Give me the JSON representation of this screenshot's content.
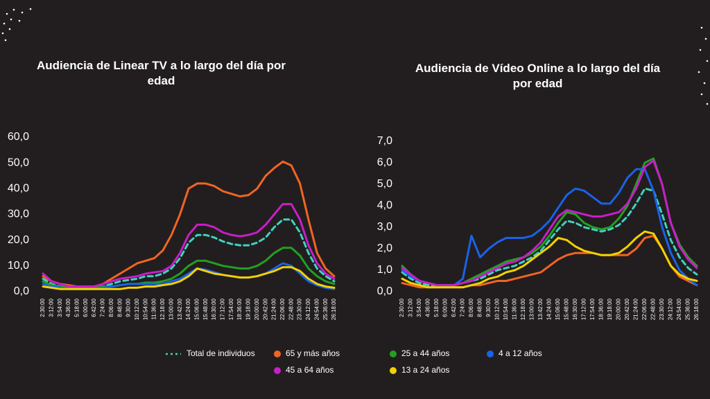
{
  "chart_data": [
    {
      "type": "line",
      "title": "Audiencia de Linear TV a lo largo del día por edad",
      "categories": [
        "2:30:00",
        "3:12:00",
        "3:54:00",
        "4:36:00",
        "5:18:00",
        "6:00:00",
        "6:42:00",
        "7:24:00",
        "8:06:00",
        "8:48:00",
        "9:30:00",
        "10:12:00",
        "10:54:00",
        "11:36:00",
        "12:18:00",
        "13:00:00",
        "13:42:00",
        "14:24:00",
        "15:06:00",
        "15:48:00",
        "16:30:00",
        "17:12:00",
        "17:54:00",
        "18:36:00",
        "19:18:00",
        "20:00:00",
        "20:42:00",
        "21:24:00",
        "22:06:00",
        "22:48:00",
        "23:30:00",
        "24:12:00",
        "24:54:00",
        "25:36:00",
        "26:18:00"
      ],
      "ylim": [
        0,
        60
      ],
      "yticks": [
        {
          "value": 0,
          "label": "0,0"
        },
        {
          "value": 10,
          "label": "10,0"
        },
        {
          "value": 20,
          "label": "20,0"
        },
        {
          "value": 30,
          "label": "30,0"
        },
        {
          "value": 40,
          "label": "40,0"
        },
        {
          "value": 50,
          "label": "50,0"
        },
        {
          "value": 60,
          "label": "60,0"
        }
      ],
      "series": [
        {
          "name": "Total de individuos",
          "color": "#3fd3bf",
          "dashed": true,
          "values": [
            5,
            3,
            2,
            2,
            1.5,
            1.5,
            1.5,
            2,
            3,
            4,
            4.5,
            5,
            6,
            6,
            7,
            9,
            13,
            19,
            22,
            22,
            21,
            19.5,
            18.5,
            18,
            18,
            19,
            21,
            25,
            28,
            28,
            23,
            15,
            9,
            6,
            4
          ]
        },
        {
          "name": "65 y más años",
          "color": "#f26522",
          "values": [
            6,
            4,
            3,
            2.5,
            2,
            2,
            2,
            3,
            5,
            7,
            9,
            11,
            12,
            13,
            16,
            22,
            30,
            40,
            42,
            42,
            41,
            39,
            38,
            37,
            37.5,
            40,
            45,
            48,
            50.5,
            49,
            42,
            28,
            15,
            9,
            6
          ]
        },
        {
          "name": "25 a 44 años",
          "color": "#22a022",
          "values": [
            4,
            2.5,
            2,
            1.5,
            1.5,
            1.5,
            1.5,
            2,
            2,
            2.5,
            3,
            3,
            3.5,
            3.5,
            4,
            5,
            7,
            10,
            12,
            12,
            11,
            10,
            9.5,
            9,
            9,
            10,
            12,
            15,
            17,
            17,
            14,
            9,
            6,
            4,
            3
          ]
        },
        {
          "name": "4 a 12 años",
          "color": "#1a62e8",
          "values": [
            3,
            2,
            1.5,
            1,
            1,
            1,
            1,
            1.5,
            2,
            2.5,
            3,
            3,
            3,
            3,
            3,
            4,
            5,
            7,
            9,
            8.5,
            7.5,
            6.5,
            6,
            5.5,
            5.5,
            6,
            7,
            9,
            11,
            10,
            7,
            4,
            2.5,
            1.5,
            1
          ]
        },
        {
          "name": "45 a 64 años",
          "color": "#c81ec8",
          "values": [
            7,
            4,
            3,
            2,
            2,
            2,
            2,
            3,
            4,
            5,
            5.5,
            6,
            7,
            7.5,
            8,
            10,
            15,
            22,
            26,
            26,
            25,
            23,
            22,
            21.5,
            22,
            23,
            26,
            30,
            34,
            34,
            28,
            18,
            11,
            7,
            5
          ]
        },
        {
          "name": "13 a 24 años",
          "color": "#f2d200",
          "values": [
            2,
            1.5,
            1,
            1,
            1,
            1,
            1,
            1,
            1,
            1,
            1.5,
            1.5,
            2,
            2,
            2.5,
            3,
            4,
            6,
            9,
            8,
            7,
            6.5,
            6,
            5.5,
            5.5,
            6,
            7,
            8,
            9.5,
            9.5,
            8,
            5,
            3,
            2,
            1.5
          ]
        }
      ]
    },
    {
      "type": "line",
      "title": "Audiencia de Vídeo Online a lo largo del día por edad",
      "categories": [
        "2:30:00",
        "3:12:00",
        "3:54:00",
        "4:36:00",
        "5:18:00",
        "6:00:00",
        "6:42:00",
        "7:24:00",
        "8:06:00",
        "8:48:00",
        "9:30:00",
        "10:12:00",
        "10:54:00",
        "11:36:00",
        "12:18:00",
        "13:00:00",
        "13:42:00",
        "14:24:00",
        "15:06:00",
        "15:48:00",
        "16:30:00",
        "17:12:00",
        "17:54:00",
        "18:36:00",
        "19:18:00",
        "20:00:00",
        "20:42:00",
        "21:24:00",
        "22:06:00",
        "22:48:00",
        "23:30:00",
        "24:12:00",
        "24:54:00",
        "25:36:00",
        "26:18:00"
      ],
      "ylim": [
        0,
        7
      ],
      "yticks": [
        {
          "value": 0,
          "label": "0,0"
        },
        {
          "value": 1,
          "label": "1,0"
        },
        {
          "value": 2,
          "label": "2,0"
        },
        {
          "value": 3,
          "label": "3,0"
        },
        {
          "value": 4,
          "label": "4,0"
        },
        {
          "value": 5,
          "label": "5,0"
        },
        {
          "value": 6,
          "label": "6,0"
        },
        {
          "value": 7,
          "label": "7,0"
        }
      ],
      "series": [
        {
          "color": "#3fd3bf",
          "dashed": true,
          "values": [
            0.9,
            0.6,
            0.4,
            0.3,
            0.3,
            0.3,
            0.3,
            0.4,
            0.5,
            0.6,
            0.8,
            1.0,
            1.1,
            1.2,
            1.4,
            1.6,
            1.9,
            2.4,
            2.9,
            3.3,
            3.2,
            3.0,
            2.9,
            2.8,
            2.9,
            3.1,
            3.5,
            4.1,
            4.8,
            4.7,
            3.6,
            2.4,
            1.6,
            1.1,
            0.8
          ]
        },
        {
          "color": "#f26522",
          "values": [
            0.4,
            0.3,
            0.2,
            0.2,
            0.2,
            0.2,
            0.2,
            0.2,
            0.3,
            0.3,
            0.4,
            0.5,
            0.5,
            0.6,
            0.7,
            0.8,
            0.9,
            1.2,
            1.5,
            1.7,
            1.8,
            1.8,
            1.8,
            1.7,
            1.7,
            1.7,
            1.7,
            2.0,
            2.5,
            2.6,
            2.0,
            1.2,
            0.7,
            0.5,
            0.3
          ]
        },
        {
          "color": "#22a022",
          "values": [
            1.2,
            0.8,
            0.5,
            0.4,
            0.3,
            0.3,
            0.3,
            0.4,
            0.6,
            0.8,
            1.0,
            1.2,
            1.4,
            1.5,
            1.6,
            1.8,
            2.1,
            2.6,
            3.2,
            3.7,
            3.6,
            3.2,
            3.0,
            2.9,
            3.0,
            3.4,
            4.0,
            5.0,
            6.0,
            6.2,
            5.0,
            3.2,
            2.2,
            1.6,
            1.2
          ]
        },
        {
          "color": "#1a62e8",
          "values": [
            1.0,
            0.7,
            0.5,
            0.4,
            0.3,
            0.3,
            0.3,
            0.6,
            2.6,
            1.6,
            2.0,
            2.3,
            2.5,
            2.5,
            2.5,
            2.6,
            2.9,
            3.3,
            3.9,
            4.5,
            4.8,
            4.7,
            4.4,
            4.1,
            4.1,
            4.6,
            5.3,
            5.7,
            5.7,
            4.7,
            3.0,
            1.8,
            1.0,
            0.6,
            0.3
          ]
        },
        {
          "color": "#c81ec8",
          "values": [
            1.1,
            0.8,
            0.5,
            0.4,
            0.3,
            0.3,
            0.3,
            0.4,
            0.5,
            0.7,
            0.9,
            1.1,
            1.3,
            1.4,
            1.6,
            1.9,
            2.3,
            2.9,
            3.5,
            3.8,
            3.7,
            3.6,
            3.5,
            3.5,
            3.6,
            3.7,
            4.1,
            4.8,
            5.8,
            6.1,
            5.0,
            3.2,
            2.1,
            1.5,
            1.1
          ]
        },
        {
          "color": "#f2d200",
          "values": [
            0.6,
            0.4,
            0.3,
            0.2,
            0.2,
            0.2,
            0.2,
            0.2,
            0.3,
            0.4,
            0.6,
            0.7,
            0.9,
            1.0,
            1.2,
            1.5,
            1.8,
            2.1,
            2.5,
            2.4,
            2.1,
            1.9,
            1.8,
            1.7,
            1.7,
            1.8,
            2.1,
            2.5,
            2.8,
            2.7,
            2.0,
            1.2,
            0.8,
            0.6,
            0.5
          ]
        }
      ]
    }
  ]
}
